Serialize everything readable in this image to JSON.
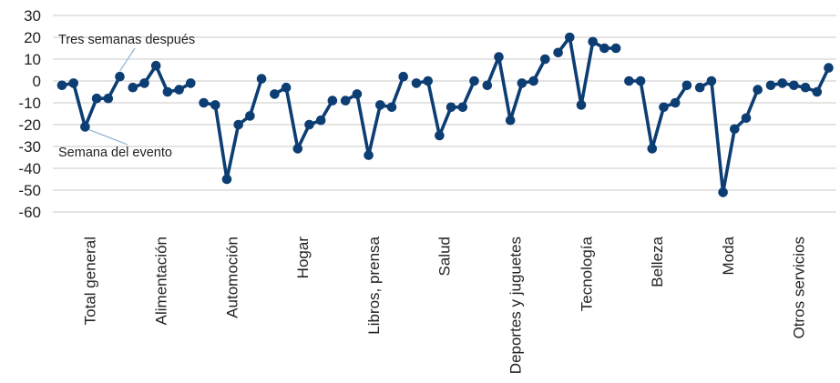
{
  "chart_data": {
    "type": "line",
    "ylim": [
      -60,
      30
    ],
    "yticks": [
      30,
      20,
      10,
      0,
      -10,
      -20,
      -30,
      -40,
      -50,
      -60
    ],
    "grid": true,
    "legend": "none",
    "line_color": "#0c3d73",
    "groups": [
      {
        "label": "Total general",
        "values": [
          -2,
          -1,
          -21,
          -8,
          -8,
          2
        ]
      },
      {
        "label": "Alimentación",
        "values": [
          -3,
          -1,
          7,
          -5,
          -4,
          -1
        ]
      },
      {
        "label": "Automoción",
        "values": [
          -10,
          -11,
          -45,
          -20,
          -16,
          1
        ]
      },
      {
        "label": "Hogar",
        "values": [
          -6,
          -3,
          -31,
          -20,
          -18,
          -9
        ]
      },
      {
        "label": "Libros, prensa",
        "values": [
          -9,
          -6,
          -34,
          -11,
          -12,
          2
        ]
      },
      {
        "label": "Salud",
        "values": [
          -1,
          0,
          -25,
          -12,
          -12,
          0
        ]
      },
      {
        "label": "Deportes y juguetes",
        "values": [
          -2,
          11,
          -18,
          -1,
          0,
          10
        ]
      },
      {
        "label": "Tecnología",
        "values": [
          13,
          20,
          -11,
          18,
          15,
          15
        ]
      },
      {
        "label": "Belleza",
        "values": [
          0,
          0,
          -31,
          -12,
          -10,
          -2
        ]
      },
      {
        "label": "Moda",
        "values": [
          -3,
          0,
          -51,
          -22,
          -17,
          -4
        ]
      },
      {
        "label": "Otros servicios",
        "values": [
          -2,
          -1,
          -2,
          -3,
          -5,
          6
        ]
      }
    ],
    "annotations": [
      {
        "text": "Tres semanas después",
        "group": 0,
        "point": 5
      },
      {
        "text": "Semana del evento",
        "group": 0,
        "point": 2
      }
    ]
  }
}
